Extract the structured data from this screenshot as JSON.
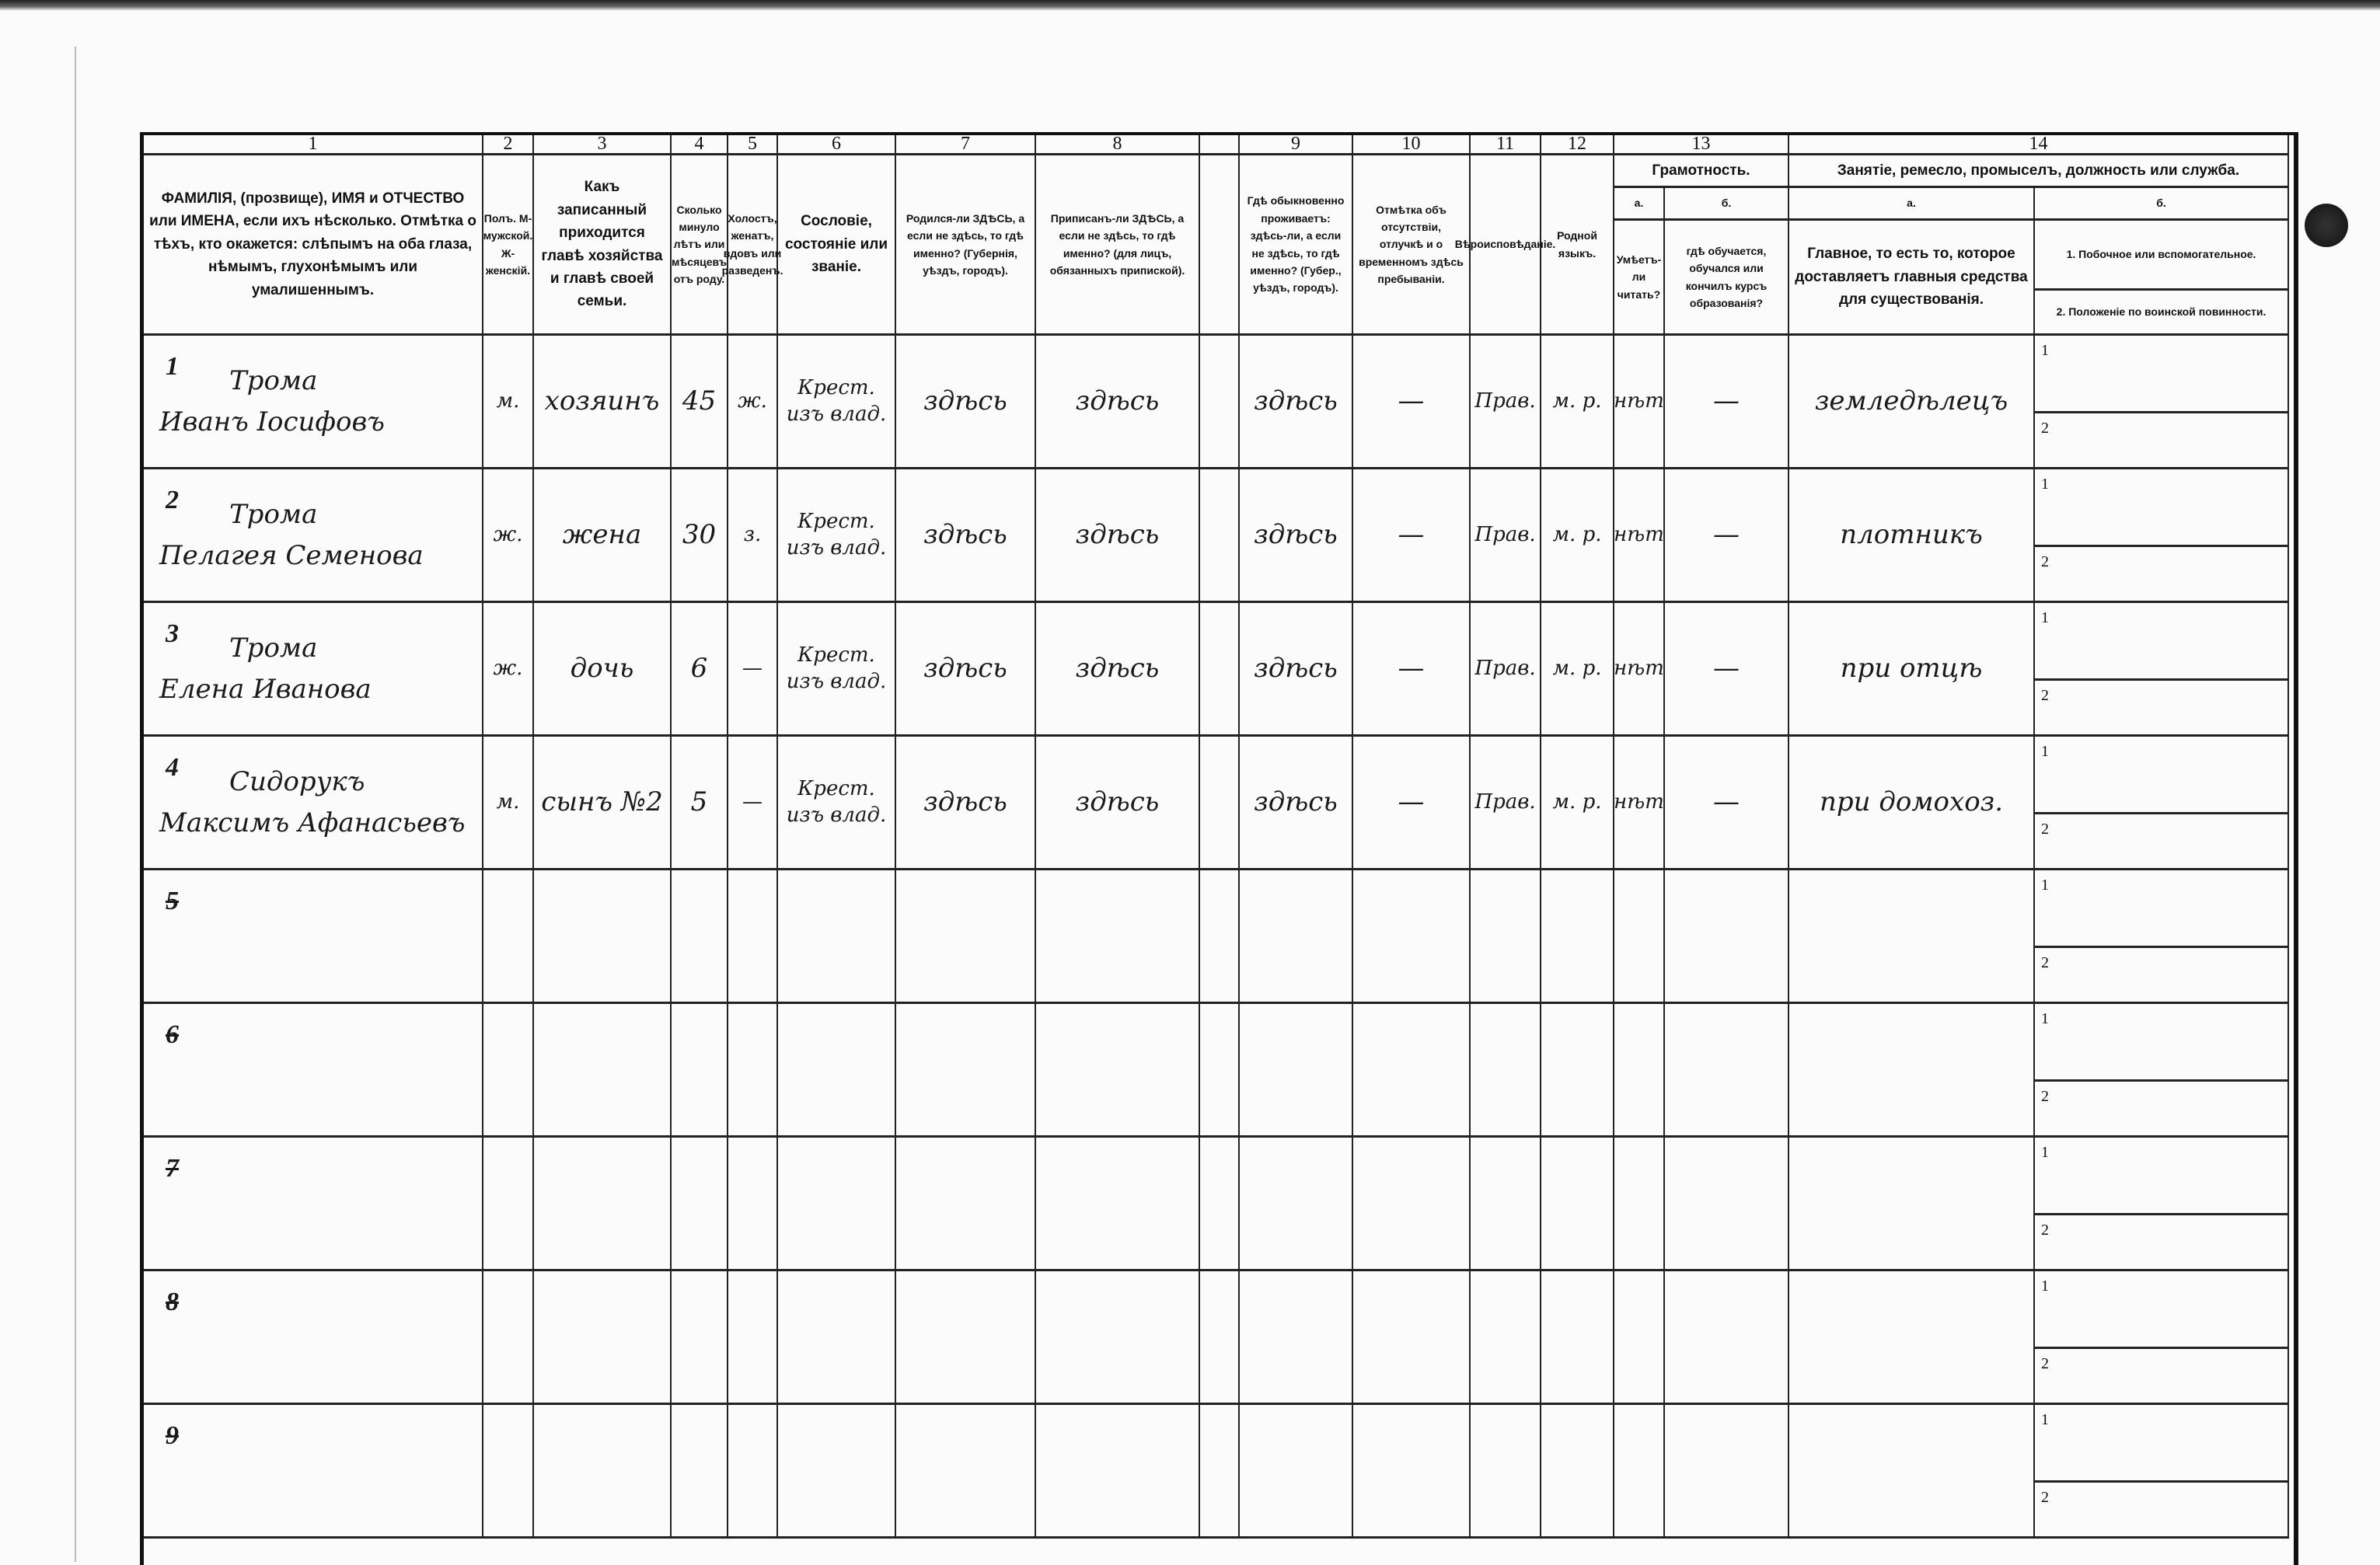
{
  "header": {
    "numbers": [
      "1",
      "2",
      "3",
      "4",
      "5",
      "6",
      "7",
      "8",
      "",
      "9",
      "10",
      "11",
      "12",
      "13",
      "",
      "14",
      ""
    ],
    "col1": "ФАМИЛІЯ, (прозвище), ИМЯ и ОТЧЕСТВО или ИМЕНА, если ихъ нѣсколько. Отмѣтка о тѣхъ, кто окажется: слѣпымъ на оба глаза, нѣмымъ, глухонѣмымъ или умалишеннымъ.",
    "col2": "Полъ. М-мужской. Ж-женскій.",
    "col3": "Какъ записанный приходится главѣ хозяйства и главѣ своей семьи.",
    "col4": "Сколько минуло лѣтъ или мѣсяцевъ отъ роду.",
    "col5": "Холостъ, женатъ, вдовъ или разведенъ.",
    "col6": "Сословіе, состояніе или званіе.",
    "col7": "Родился-ли ЗДѢСЬ, а если не здѣсь, то гдѣ именно? (Губернія, уѣздъ, городъ).",
    "col8": "Приписанъ-ли ЗДѢСЬ, а если не здѣсь, то гдѣ именно? (для лицъ, обязанныхъ припиской).",
    "col9": "Гдѣ обыкновенно проживаетъ: здѣсь-ли, а если не здѣсь, то гдѣ именно? (Губер., уѣздъ, городъ).",
    "col10": "Отмѣтка объ отсутствіи, отлучкѣ и о временномъ здѣсь пребываніи.",
    "col11": "Вѣроисповѣданіе.",
    "col12": "Родной языкъ.",
    "col13_title": "Грамотность.",
    "col13a_letter": "а.",
    "col13a": "Умѣетъ-ли читать?",
    "col13b_letter": "б.",
    "col13b": "гдѣ обучается, обучался или кончилъ курсъ образованія?",
    "col14_title": "Занятіе, ремесло, промыселъ, должность или служба.",
    "col14a_letter": "а.",
    "col14a": "Главное, то есть то, которое доставляетъ главныя средства для существованія.",
    "col14b_letter": "б.",
    "col14b1": "1. Побочное или вспомогательное.",
    "col14b2": "2. Положеніе по воинской повинности."
  },
  "sub_labels": [
    "1",
    "2"
  ],
  "rows": [
    {
      "n": "1",
      "surname": "Трома",
      "name": "Иванъ Іосифовъ",
      "sex": "м.",
      "relation": "хозяинъ",
      "age": "45",
      "marital": "ж.",
      "estate": "Крест. изъ влад.",
      "born": "здѣсь",
      "registered": "здѣсь",
      "resides": "здѣсь",
      "absence": "—",
      "religion": "Прав.",
      "language": "м. р.",
      "literate": "нѣт",
      "education": "—",
      "occupation": "земледѣлецъ",
      "struck": false
    },
    {
      "n": "2",
      "surname": "Трома",
      "name": "Пелагея Семенова",
      "sex": "ж.",
      "relation": "жена",
      "age": "30",
      "marital": "з.",
      "estate": "Крест. изъ влад.",
      "born": "здѣсь",
      "registered": "здѣсь",
      "resides": "здѣсь",
      "absence": "—",
      "religion": "Прав.",
      "language": "м. р.",
      "literate": "нѣт",
      "education": "—",
      "occupation": "плотникъ",
      "struck": false
    },
    {
      "n": "3",
      "surname": "Трома",
      "name": "Елена Иванова",
      "sex": "ж.",
      "relation": "дочь",
      "age": "6",
      "marital": "—",
      "estate": "Крест. изъ влад.",
      "born": "здѣсь",
      "registered": "здѣсь",
      "resides": "здѣсь",
      "absence": "—",
      "religion": "Прав.",
      "language": "м. р.",
      "literate": "нѣт",
      "education": "—",
      "occupation": "при отцѣ",
      "struck": false
    },
    {
      "n": "4",
      "surname": "Сидорукъ",
      "name": "Максимъ Афанасьевъ",
      "sex": "м.",
      "relation": "сынъ №2",
      "age": "5",
      "marital": "—",
      "estate": "Крест. изъ влад.",
      "born": "здѣсь",
      "registered": "здѣсь",
      "resides": "здѣсь",
      "absence": "—",
      "religion": "Прав.",
      "language": "м. р.",
      "literate": "нѣт",
      "education": "—",
      "occupation": "при домохоз.",
      "struck": false
    },
    {
      "n": "5",
      "struck": true
    },
    {
      "n": "6",
      "struck": true
    },
    {
      "n": "7",
      "struck": true
    },
    {
      "n": "8",
      "struck": true
    },
    {
      "n": "9",
      "struck": true
    }
  ]
}
